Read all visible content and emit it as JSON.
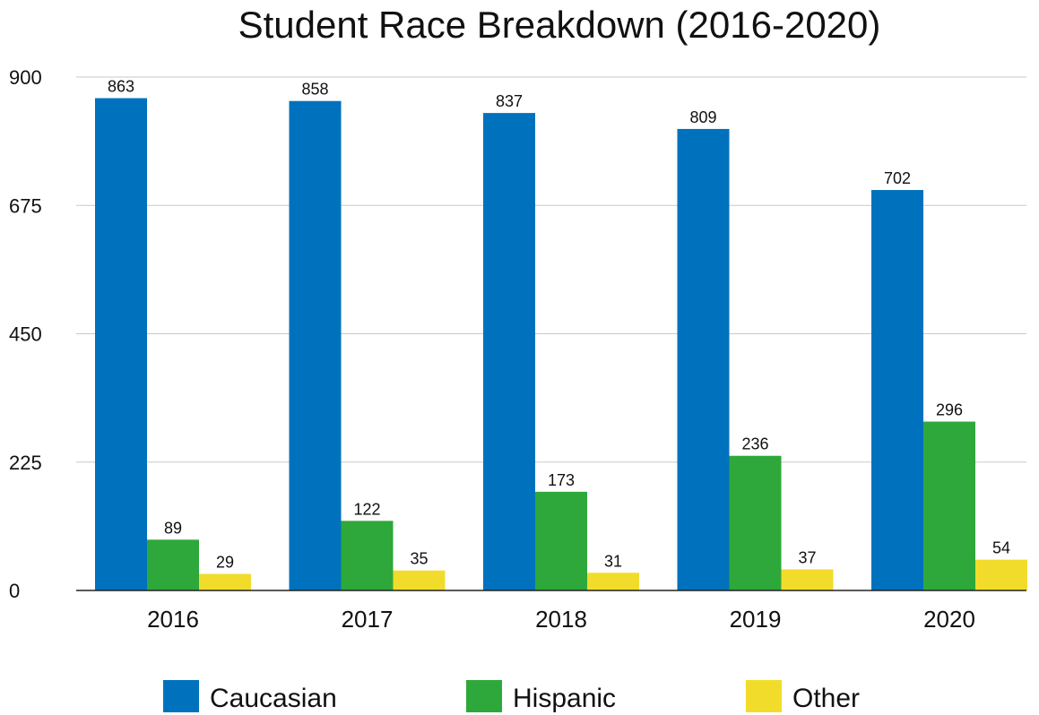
{
  "chart_data": {
    "type": "bar",
    "title": "Student Race Breakdown (2016-2020)",
    "xlabel": "",
    "ylabel": "",
    "categories": [
      "2016",
      "2017",
      "2018",
      "2019",
      "2020"
    ],
    "ylim": [
      0,
      900
    ],
    "yticks": [
      "0",
      "225",
      "450",
      "675",
      "900"
    ],
    "grid": true,
    "legend_position": "bottom",
    "series": [
      {
        "name": "Caucasian",
        "color": "#0072bd",
        "values": [
          863,
          858,
          837,
          809,
          702
        ]
      },
      {
        "name": "Hispanic",
        "color": "#2ea83a",
        "values": [
          89,
          122,
          173,
          236,
          296
        ]
      },
      {
        "name": "Other",
        "color": "#f2dc2b",
        "values": [
          29,
          35,
          31,
          37,
          54
        ]
      }
    ]
  }
}
